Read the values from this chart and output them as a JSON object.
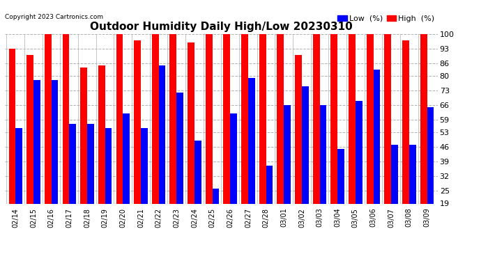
{
  "title": "Outdoor Humidity Daily High/Low 20230310",
  "copyright": "Copyright 2023 Cartronics.com",
  "legend_low": "Low  (%)",
  "legend_high": "High  (%)",
  "dates": [
    "02/14",
    "02/15",
    "02/16",
    "02/17",
    "02/18",
    "02/19",
    "02/20",
    "02/21",
    "02/22",
    "02/23",
    "02/24",
    "02/25",
    "02/26",
    "02/27",
    "02/28",
    "03/01",
    "03/02",
    "03/03",
    "03/04",
    "03/05",
    "03/06",
    "03/07",
    "03/08",
    "03/09"
  ],
  "high": [
    93,
    90,
    100,
    100,
    84,
    85,
    100,
    97,
    100,
    100,
    96,
    100,
    100,
    100,
    100,
    100,
    90,
    100,
    100,
    100,
    100,
    100,
    97,
    100
  ],
  "low": [
    55,
    78,
    78,
    57,
    57,
    55,
    62,
    55,
    85,
    72,
    49,
    26,
    62,
    79,
    37,
    66,
    75,
    66,
    45,
    68,
    83,
    47,
    47,
    65
  ],
  "high_color": "#ff0000",
  "low_color": "#0000ff",
  "bg_color": "#ffffff",
  "grid_color": "#b0b0b0",
  "ylim_min": 19,
  "ylim_max": 100,
  "yticks": [
    19,
    25,
    32,
    39,
    46,
    53,
    59,
    66,
    73,
    80,
    86,
    93,
    100
  ],
  "bar_width": 0.38
}
